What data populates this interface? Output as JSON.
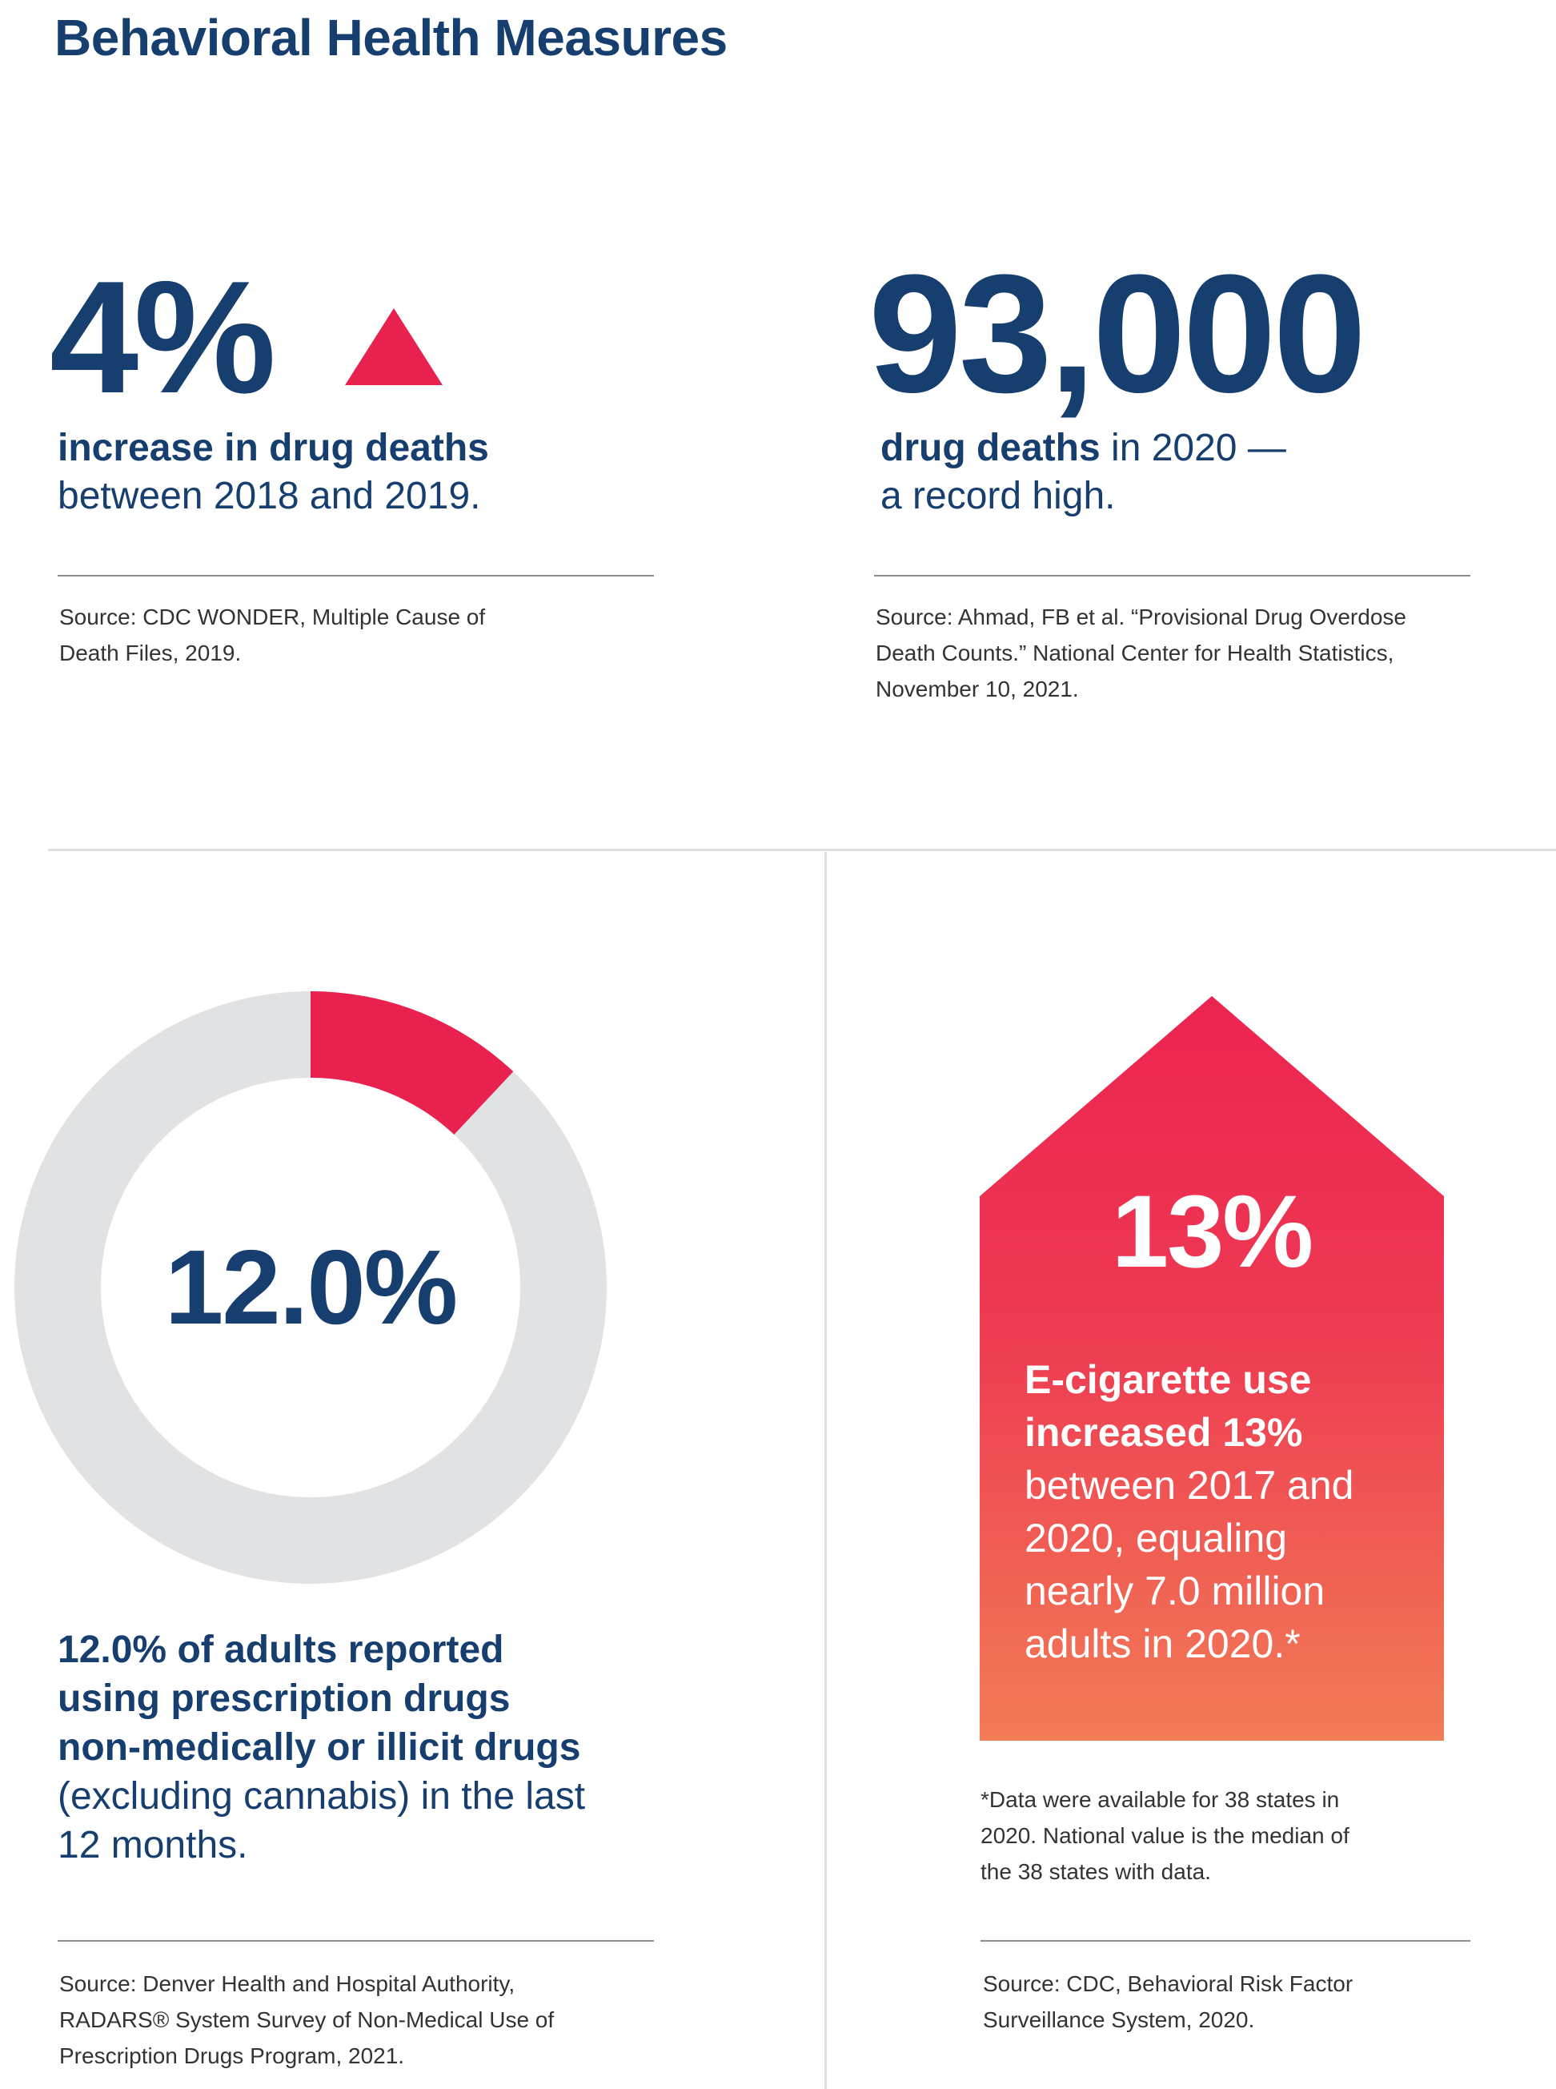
{
  "page_title": "Behavioral Health Measures",
  "colors": {
    "navy": "#163e6e",
    "accent_red": "#e8214f",
    "donut_track": "#e1e2e4",
    "house_top": "#ec2350",
    "house_bottom": "#f27c56"
  },
  "stat_drug_increase": {
    "value": "4%",
    "indicator_icon": "up-triangle-icon",
    "bold_text": "increase in drug deaths",
    "regular_text": "between 2018 and 2019.",
    "source_line1": "Source: CDC WONDER, Multiple Cause of",
    "source_line2": "Death Files, 2019."
  },
  "stat_drug_deaths": {
    "value": "93,000",
    "bold_text": "drug deaths",
    "regular_text_1": " in 2020 —",
    "regular_text_2": "a record high.",
    "source_line1": "Source: Ahmad, FB et al. “Provisional Drug Overdose",
    "source_line2": "Death Counts.” National Center for Health Statistics,",
    "source_line3": "November 10, 2021."
  },
  "stat_drug_use": {
    "value": "12.0%",
    "percent": 12.0,
    "bold_line1": "12.0% of adults reported",
    "bold_line2": "using prescription drugs",
    "bold_line3": "non-medically or illicit drugs",
    "regular_line1": "(excluding cannabis) in the last",
    "regular_line2": "12 months.",
    "source_line1": "Source: Denver Health and Hospital Authority,",
    "source_line2": "RADARS® System Survey of Non-Medical Use of",
    "source_line3": "Prescription Drugs Program, 2021."
  },
  "stat_ecig": {
    "value": "13%",
    "bold_line1": "E-cigarette use",
    "bold_line2": "increased 13%",
    "regular_line1": "between 2017 and",
    "regular_line2": "2020, equaling",
    "regular_line3": "nearly 7.0 million",
    "regular_line4": "adults in 2020.*",
    "footnote_line1": "*Data were available for 38 states in",
    "footnote_line2": "2020. National value is the median of",
    "footnote_line3": "the 38 states with data.",
    "source_line1": "Source: CDC, Behavioral Risk Factor",
    "source_line2": "Surveillance System, 2020."
  }
}
